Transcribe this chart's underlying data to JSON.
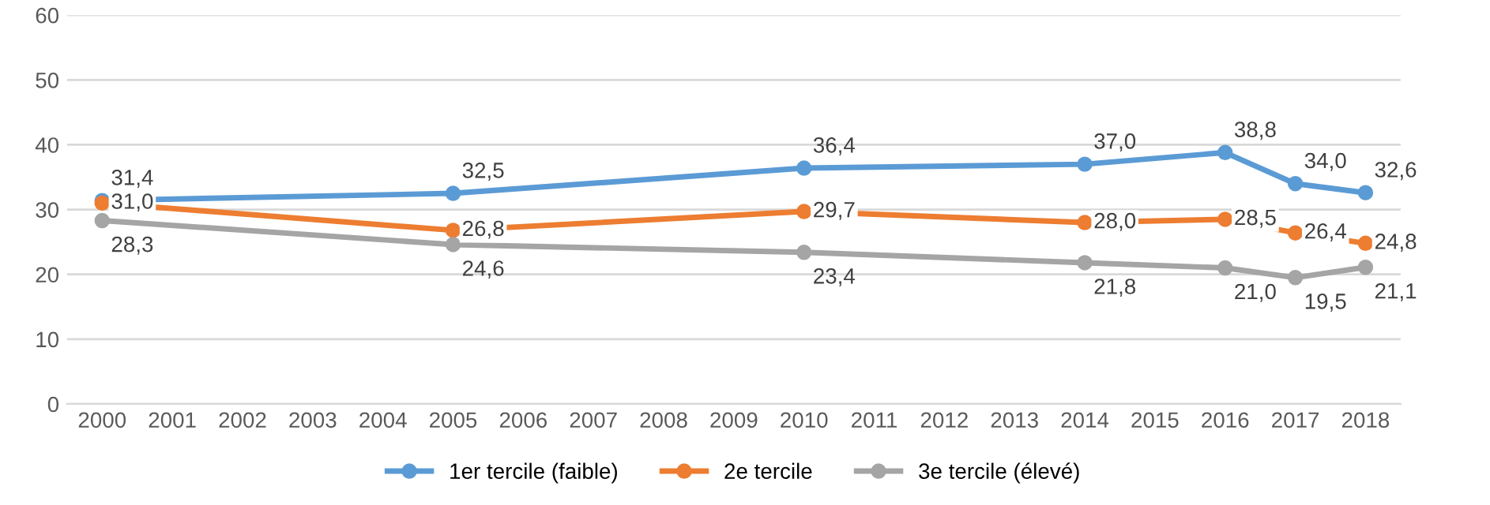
{
  "chart_data": {
    "type": "line",
    "x": [
      2000,
      2005,
      2010,
      2014,
      2016,
      2017,
      2018
    ],
    "series": [
      {
        "name": "1er tercile (faible)",
        "color": "#5b9bd5",
        "values": [
          31.4,
          32.5,
          36.4,
          37.0,
          38.8,
          34.0,
          32.6
        ],
        "value_labels": [
          "31,4",
          "32,5",
          "36,4",
          "37,0",
          "38,8",
          "34,0",
          "32,6"
        ]
      },
      {
        "name": "2e tercile",
        "color": "#ed7d31",
        "values": [
          31.0,
          26.8,
          29.7,
          28.0,
          28.5,
          26.4,
          24.8
        ],
        "value_labels": [
          "31,0",
          "26,8",
          "29,7",
          "28,0",
          "28,5",
          "26,4",
          "24,8"
        ]
      },
      {
        "name": "3e tercile (élevé)",
        "color": "#a5a5a5",
        "values": [
          28.3,
          24.6,
          23.4,
          21.8,
          21.0,
          19.5,
          21.1
        ],
        "value_labels": [
          "28,3",
          "24,6",
          "23,4",
          "21,8",
          "21,0",
          "19,5",
          "21,1"
        ]
      }
    ],
    "xlim": [
      1999.5,
      2018.5
    ],
    "xticks": [
      2000,
      2001,
      2002,
      2003,
      2004,
      2005,
      2006,
      2007,
      2008,
      2009,
      2010,
      2011,
      2012,
      2013,
      2014,
      2015,
      2016,
      2017,
      2018
    ],
    "ylim": [
      0,
      60
    ],
    "yticks": [
      0,
      10,
      20,
      30,
      40,
      50,
      60
    ],
    "grid": "y",
    "legend": "bottom",
    "marker": "circle",
    "line_style": "solid"
  }
}
